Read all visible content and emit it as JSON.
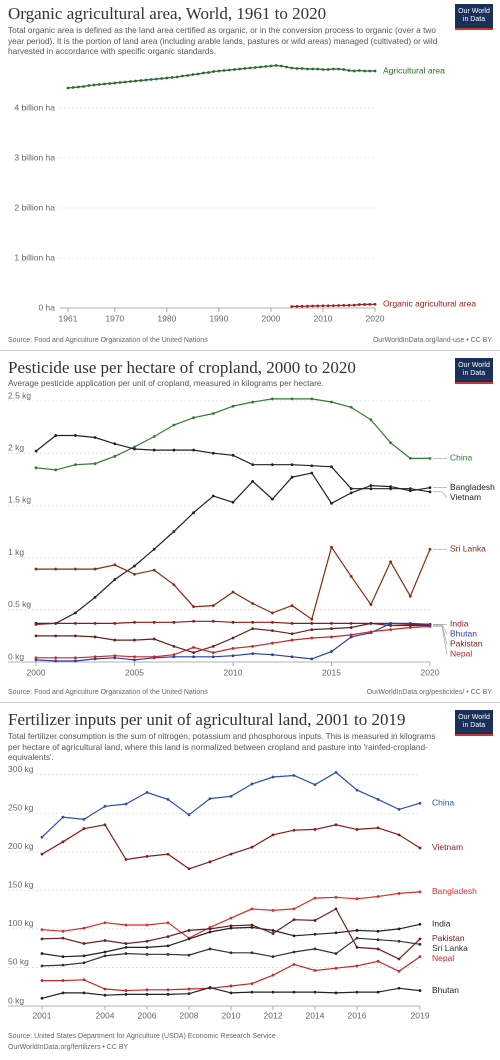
{
  "chart_data": [
    {
      "type": "line",
      "title": "Organic agricultural area, World, 1961 to 2020",
      "subtitle": "Total organic area is defined as the land area certified as organic, or in the conversion process to organic (over a two year period). It is the portion of land area (including arable lands, pastures or wild areas) managed (cultivated) or wild harvested in accordance with specific organic standards.",
      "logo": "Our World in Data",
      "source": "Source: Food and Agriculture Organization of the United Nations",
      "license": "OurWorldInData.org/land-use • CC BY",
      "x": [
        1961,
        1962,
        1963,
        1964,
        1965,
        1966,
        1967,
        1968,
        1969,
        1970,
        1971,
        1972,
        1973,
        1974,
        1975,
        1976,
        1977,
        1978,
        1979,
        1980,
        1981,
        1982,
        1983,
        1984,
        1985,
        1986,
        1987,
        1988,
        1989,
        1990,
        1991,
        1992,
        1993,
        1994,
        1995,
        1996,
        1997,
        1998,
        1999,
        2000,
        2001,
        2002,
        2003,
        2004,
        2005,
        2006,
        2007,
        2008,
        2009,
        2010,
        2011,
        2012,
        2013,
        2014,
        2015,
        2016,
        2017,
        2018,
        2019,
        2020
      ],
      "xlim": [
        1961,
        2020
      ],
      "xticks": [
        1961,
        1970,
        1980,
        1990,
        2000,
        2010,
        2020
      ],
      "ylim": [
        0,
        5000000000.0
      ],
      "yticks": [
        {
          "value": 0,
          "label": "0 ha"
        },
        {
          "value": 1000000000.0,
          "label": "1 billion ha"
        },
        {
          "value": 2000000000.0,
          "label": "2 billion ha"
        },
        {
          "value": 3000000000.0,
          "label": "3 billion ha"
        },
        {
          "value": 4000000000.0,
          "label": "4 billion ha"
        }
      ],
      "grid": true,
      "series": [
        {
          "name": "Agricultural area",
          "color": "#2a6b2f",
          "values": [
            4400000000.0,
            4410000000.0,
            4420000000.0,
            4430000000.0,
            4450000000.0,
            4460000000.0,
            4470000000.0,
            4480000000.0,
            4490000000.0,
            4500000000.0,
            4510000000.0,
            4520000000.0,
            4530000000.0,
            4540000000.0,
            4550000000.0,
            4560000000.0,
            4570000000.0,
            4580000000.0,
            4590000000.0,
            4600000000.0,
            4610000000.0,
            4620000000.0,
            4640000000.0,
            4650000000.0,
            4670000000.0,
            4680000000.0,
            4700000000.0,
            4710000000.0,
            4730000000.0,
            4740000000.0,
            4750000000.0,
            4760000000.0,
            4770000000.0,
            4780000000.0,
            4790000000.0,
            4800000000.0,
            4810000000.0,
            4820000000.0,
            4830000000.0,
            4840000000.0,
            4850000000.0,
            4840000000.0,
            4820000000.0,
            4800000000.0,
            4790000000.0,
            4790000000.0,
            4780000000.0,
            4780000000.0,
            4780000000.0,
            4770000000.0,
            4770000000.0,
            4780000000.0,
            4780000000.0,
            4770000000.0,
            4750000000.0,
            4740000000.0,
            4750000000.0,
            4740000000.0,
            4740000000.0,
            4740000000.0
          ]
        },
        {
          "name": "Organic agricultural area",
          "color": "#a2201c",
          "values": [
            null,
            null,
            null,
            null,
            null,
            null,
            null,
            null,
            null,
            null,
            null,
            null,
            null,
            null,
            null,
            null,
            null,
            null,
            null,
            null,
            null,
            null,
            null,
            null,
            null,
            null,
            null,
            null,
            null,
            null,
            null,
            null,
            null,
            null,
            null,
            null,
            null,
            null,
            null,
            null,
            null,
            null,
            null,
            30000000.0,
            32000000.0,
            34000000.0,
            36000000.0,
            40000000.0,
            43000000.0,
            45000000.0,
            45000000.0,
            47000000.0,
            50000000.0,
            52000000.0,
            54000000.0,
            58000000.0,
            69000000.0,
            71000000.0,
            73000000.0,
            75000000.0
          ]
        }
      ]
    },
    {
      "type": "line",
      "title": "Pesticide use per hectare of cropland, 2000 to 2020",
      "subtitle": "Average pesticide application per unit of cropland, measured in kilograms per hectare.",
      "logo": "Our World in Data",
      "source": "Source: Food and Agriculture Organization of the United Nations",
      "license": "OurWorldInData.org/pesticides/ • CC BY",
      "x": [
        2000,
        2001,
        2002,
        2003,
        2004,
        2005,
        2006,
        2007,
        2008,
        2009,
        2010,
        2011,
        2012,
        2013,
        2014,
        2015,
        2016,
        2017,
        2018,
        2019,
        2020
      ],
      "xlim": [
        2000,
        2020
      ],
      "xticks": [
        2000,
        2005,
        2010,
        2015,
        2020
      ],
      "ylim": [
        0,
        2.5
      ],
      "yticks": [
        {
          "value": 0,
          "label": "0 kg"
        },
        {
          "value": 0.5,
          "label": "0.5 kg"
        },
        {
          "value": 1,
          "label": "1 kg"
        },
        {
          "value": 1.5,
          "label": "1.5 kg"
        },
        {
          "value": 2,
          "label": "2 kg"
        },
        {
          "value": 2.5,
          "label": "2.5 kg"
        }
      ],
      "grid": true,
      "series": [
        {
          "name": "China",
          "color": "#2e7d32",
          "values": [
            1.86,
            1.84,
            1.89,
            1.9,
            1.97,
            2.06,
            2.16,
            2.27,
            2.34,
            2.38,
            2.45,
            2.49,
            2.52,
            2.52,
            2.52,
            2.49,
            2.44,
            2.32,
            2.1,
            1.95,
            1.95
          ]
        },
        {
          "name": "Bangladesh",
          "color": "#222222",
          "values": [
            0.37,
            0.37,
            0.47,
            0.62,
            0.79,
            0.92,
            1.08,
            1.25,
            1.43,
            1.59,
            1.53,
            1.73,
            1.56,
            1.77,
            1.81,
            1.52,
            1.62,
            1.69,
            1.68,
            1.64,
            1.67
          ]
        },
        {
          "name": "Vietnam",
          "color": "#222222",
          "values": [
            2.02,
            2.17,
            2.17,
            2.15,
            2.09,
            2.04,
            2.03,
            2.03,
            2.03,
            2.0,
            1.98,
            1.89,
            1.89,
            1.89,
            1.88,
            1.87,
            1.66,
            1.66,
            1.66,
            1.66,
            1.63
          ]
        },
        {
          "name": "Sri Lanka",
          "color": "#8b2a0e",
          "values": [
            0.89,
            0.89,
            0.89,
            0.89,
            0.93,
            0.84,
            0.88,
            0.74,
            0.53,
            0.54,
            0.67,
            0.56,
            0.47,
            0.54,
            0.41,
            1.1,
            0.82,
            0.55,
            0.96,
            0.63,
            1.08
          ]
        },
        {
          "name": "India",
          "color": "#8b1a1a",
          "values": [
            0.36,
            0.37,
            0.37,
            0.37,
            0.37,
            0.38,
            0.38,
            0.38,
            0.39,
            0.39,
            0.38,
            0.38,
            0.38,
            0.37,
            0.37,
            0.37,
            0.37,
            0.37,
            0.37,
            0.36,
            0.36
          ]
        },
        {
          "name": "Pakistan",
          "color": "#6b1e1e",
          "values": [
            0.25,
            0.25,
            0.25,
            0.24,
            0.21,
            0.21,
            0.22,
            0.15,
            0.09,
            0.15,
            0.23,
            0.32,
            0.3,
            0.27,
            0.31,
            0.32,
            0.33,
            0.37,
            0.35,
            0.35,
            0.35
          ]
        },
        {
          "name": "Bhutan",
          "color": "#2c3e9e",
          "values": [
            0.02,
            0.01,
            0.01,
            0.03,
            0.04,
            0.02,
            0.04,
            0.05,
            0.05,
            0.05,
            0.06,
            0.08,
            0.07,
            0.05,
            0.03,
            0.1,
            0.24,
            0.28,
            0.37,
            0.37,
            0.36
          ]
        },
        {
          "name": "Nepal",
          "color": "#c62828",
          "values": [
            0.04,
            0.04,
            0.04,
            0.05,
            0.06,
            0.05,
            0.05,
            0.07,
            0.14,
            0.09,
            0.13,
            0.15,
            0.18,
            0.21,
            0.23,
            0.24,
            0.26,
            0.29,
            0.31,
            0.33,
            0.34
          ]
        }
      ]
    },
    {
      "type": "line",
      "title": "Fertilizer inputs per unit of agricultural land, 2001 to 2019",
      "subtitle": "Total fertilizer consumption is the sum of nitrogen, potassium and phosphorous inputs. This is measured in kilograms per hectare of agricultural land, where this land is normalized between cropland and pasture into 'rainfed-cropland-equivalents'.",
      "logo": "Our World in Data",
      "source": "Source: United States Department for Agriculture (USDA) Economic Research Service",
      "license": "OurWorldInData.org/fertilizers • CC BY",
      "x": [
        2001,
        2002,
        2003,
        2004,
        2005,
        2006,
        2007,
        2008,
        2009,
        2010,
        2011,
        2012,
        2013,
        2014,
        2015,
        2016,
        2017,
        2018,
        2019
      ],
      "xlim": [
        2001,
        2019
      ],
      "xticks": [
        2001,
        2004,
        2006,
        2008,
        2010,
        2012,
        2014,
        2016,
        2019
      ],
      "ylim": [
        0,
        310
      ],
      "yticks": [
        {
          "value": 0,
          "label": "0 kg"
        },
        {
          "value": 50,
          "label": "50 kg"
        },
        {
          "value": 100,
          "label": "100 kg"
        },
        {
          "value": 150,
          "label": "150 kg"
        },
        {
          "value": 200,
          "label": "200 kg"
        },
        {
          "value": 250,
          "label": "250 kg"
        },
        {
          "value": 300,
          "label": "300 kg"
        }
      ],
      "grid": true,
      "series": [
        {
          "name": "China",
          "color": "#2c4fb0",
          "values": [
            219,
            245,
            242,
            259,
            262,
            277,
            268,
            248,
            269,
            272,
            288,
            297,
            299,
            287,
            303,
            280,
            268,
            255,
            263
          ]
        },
        {
          "name": "Vietnam",
          "color": "#8b1a1a",
          "values": [
            197,
            213,
            230,
            235,
            190,
            194,
            197,
            178,
            187,
            197,
            206,
            222,
            228,
            229,
            235,
            229,
            231,
            222,
            205
          ]
        },
        {
          "name": "Bangladesh",
          "color": "#d32f2f",
          "values": [
            99,
            97,
            101,
            108,
            105,
            105,
            108,
            88,
            102,
            114,
            126,
            124,
            126,
            140,
            141,
            139,
            142,
            146,
            148
          ]
        },
        {
          "name": "India",
          "color": "#222222",
          "values": [
            68,
            64,
            65,
            70,
            76,
            76,
            78,
            87,
            96,
            101,
            102,
            98,
            91,
            93,
            95,
            98,
            97,
            100,
            106
          ]
        },
        {
          "name": "Pakistan",
          "color": "#6b1e1e",
          "values": [
            87,
            88,
            81,
            85,
            81,
            84,
            90,
            98,
            100,
            104,
            105,
            94,
            112,
            111,
            126,
            76,
            74,
            61,
            87
          ]
        },
        {
          "name": "Sri Lanka",
          "color": "#333333",
          "values": [
            52,
            53,
            56,
            65,
            68,
            67,
            67,
            66,
            74,
            69,
            69,
            64,
            70,
            74,
            68,
            88,
            86,
            84,
            80
          ]
        },
        {
          "name": "Nepal",
          "color": "#c62828",
          "values": [
            33,
            33,
            34,
            22,
            20,
            21,
            21,
            22,
            23,
            26,
            29,
            40,
            54,
            46,
            49,
            52,
            58,
            45,
            64
          ]
        },
        {
          "name": "Bhutan",
          "color": "#222222",
          "values": [
            10,
            17,
            17,
            14,
            15,
            15,
            15,
            16,
            24,
            17,
            18,
            18,
            18,
            18,
            17,
            18,
            18,
            23,
            20
          ]
        }
      ]
    }
  ]
}
